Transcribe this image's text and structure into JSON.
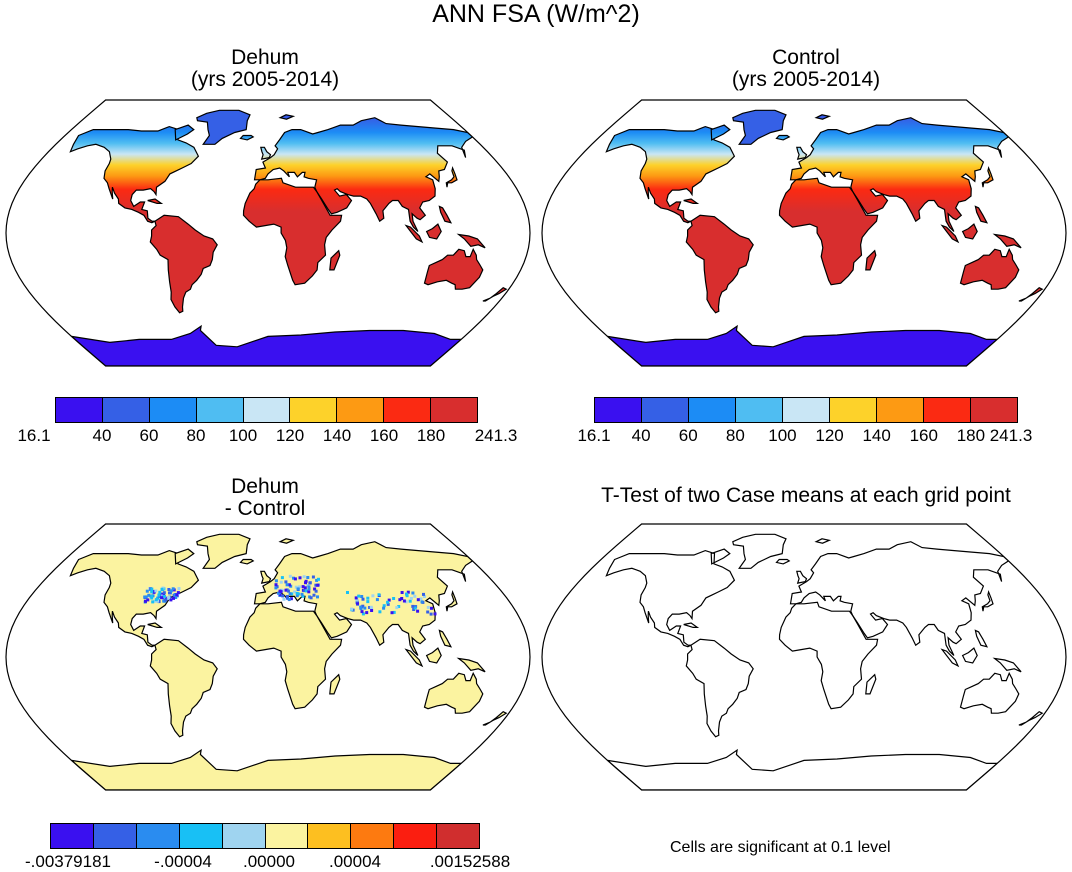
{
  "main_title": "ANN FSA (W/m^2)",
  "panels": {
    "dehum": {
      "title_line1": "Dehum",
      "title_line2": "(yrs 2005-2014)"
    },
    "control": {
      "title_line1": "Control",
      "title_line2": "(yrs 2005-2014)"
    },
    "diff": {
      "title_line1": "Dehum",
      "title_line2": "- Control"
    },
    "ttest": {
      "title": "T-Test of two Case means at each grid point",
      "note": "Cells are significant at 0.1 level"
    }
  },
  "colorbar_abs": {
    "colors": [
      "#3a10f0",
      "#3560e6",
      "#1c8cf5",
      "#4fbdf2",
      "#c9e6f5",
      "#fdd22a",
      "#fd9a13",
      "#fb2a12",
      "#d82e2e"
    ],
    "labels": [
      "16.1",
      "40",
      "60",
      "80",
      "100",
      "120",
      "140",
      "160",
      "180",
      "241.3"
    ]
  },
  "colorbar_diff": {
    "colors": [
      "#3a10f0",
      "#3560e6",
      "#2a8cf0",
      "#18c0f5",
      "#9fd4f0",
      "#fbf3a0",
      "#fdbf20",
      "#fd7a10",
      "#fb1e10",
      "#d02e2e"
    ],
    "labels": [
      "-.00379181",
      "-.00004",
      ".00000",
      ".00004",
      ".00152588"
    ]
  },
  "colors": {
    "ocean": "#ffffff",
    "land_outline": "#000000",
    "diff_land": "#fbf3a0",
    "antarctica": "#3a10f0"
  }
}
